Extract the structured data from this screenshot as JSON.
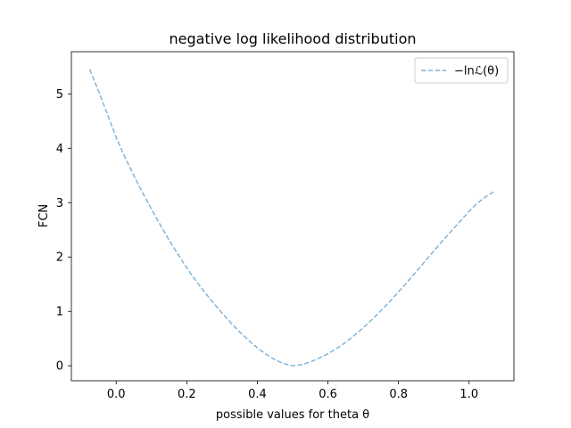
{
  "chart_data": {
    "type": "line",
    "title": "negative log likelihood distribution",
    "xlabel": "possible values for theta θ",
    "ylabel": "FCN",
    "xlim": [
      -0.127,
      1.127
    ],
    "ylim": [
      -0.275,
      5.775
    ],
    "xticks": [
      0.0,
      0.2,
      0.4,
      0.6,
      0.8,
      1.0
    ],
    "xtick_labels": [
      "0.0",
      "0.2",
      "0.4",
      "0.6",
      "0.8",
      "1.0"
    ],
    "yticks": [
      0,
      1,
      2,
      3,
      4,
      5
    ],
    "ytick_labels": [
      "0",
      "1",
      "2",
      "3",
      "4",
      "5"
    ],
    "grid": false,
    "legend": {
      "position": "top-right",
      "entries": [
        "−lnℒ(θ)"
      ]
    },
    "series": [
      {
        "name": "−lnℒ(θ)",
        "color": "#1f77b4",
        "linestyle": "dashed",
        "x": [
          -0.075,
          -0.05,
          -0.025,
          0.0,
          0.025,
          0.05,
          0.075,
          0.1,
          0.125,
          0.15,
          0.175,
          0.2,
          0.225,
          0.25,
          0.275,
          0.3,
          0.325,
          0.35,
          0.375,
          0.4,
          0.425,
          0.45,
          0.475,
          0.5,
          0.525,
          0.55,
          0.575,
          0.6,
          0.625,
          0.65,
          0.675,
          0.7,
          0.725,
          0.75,
          0.775,
          0.8,
          0.825,
          0.85,
          0.875,
          0.9,
          0.925,
          0.95,
          0.975,
          1.0,
          1.025,
          1.05,
          1.075
        ],
        "y": [
          5.45,
          5.05,
          4.63,
          4.2,
          3.83,
          3.5,
          3.18,
          2.88,
          2.59,
          2.31,
          2.05,
          1.8,
          1.57,
          1.36,
          1.16,
          0.97,
          0.79,
          0.62,
          0.47,
          0.33,
          0.21,
          0.11,
          0.04,
          0.0,
          0.02,
          0.07,
          0.14,
          0.22,
          0.32,
          0.43,
          0.56,
          0.7,
          0.85,
          1.01,
          1.18,
          1.36,
          1.54,
          1.73,
          1.92,
          2.11,
          2.3,
          2.48,
          2.66,
          2.84,
          3.0,
          3.12,
          3.22
        ]
      }
    ]
  }
}
